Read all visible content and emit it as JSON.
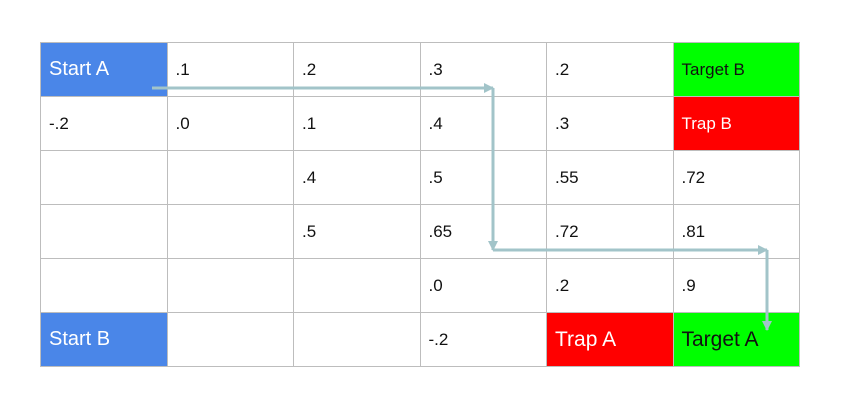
{
  "grid": {
    "rows": [
      [
        "Start A",
        ".1",
        ".2",
        ".3",
        ".2",
        "Target B"
      ],
      [
        "-.2",
        ".0",
        ".1",
        ".4",
        ".3",
        "Trap B"
      ],
      [
        "",
        "",
        ".4",
        ".5",
        ".55",
        ".72"
      ],
      [
        "",
        "",
        ".5",
        ".65",
        ".72",
        ".81"
      ],
      [
        "",
        "",
        "",
        ".0",
        ".2",
        ".9"
      ],
      [
        "Start B",
        "",
        "",
        "-.2",
        "Trap A",
        "Target A"
      ]
    ]
  },
  "colors": {
    "start": "#4a86e8",
    "target": "#00ff00",
    "trap": "#ff0000",
    "arrow": "#a2c4c9",
    "grid_line": "#bdbdbd"
  },
  "path": {
    "cells": [
      [
        0,
        0
      ],
      [
        0,
        3
      ],
      [
        3,
        3
      ],
      [
        3,
        5
      ],
      [
        5,
        5
      ]
    ]
  }
}
